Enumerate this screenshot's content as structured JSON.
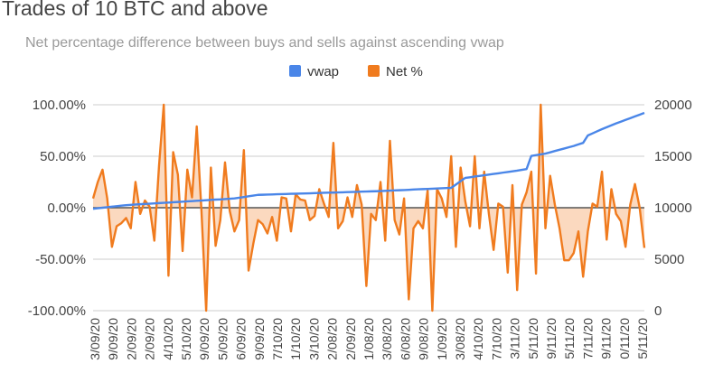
{
  "chart_data": {
    "type": "line",
    "title": "Trades of 10 BTC and above",
    "subtitle": "Net percentage difference between buys and sells against ascending vwap",
    "legend": {
      "position": "top",
      "entries": [
        "vwap",
        "Net %"
      ]
    },
    "colors": {
      "vwap": "#4a86e8",
      "net": "#f07b1e",
      "net_fill": "#f9c9a4",
      "grid": "#cccccc",
      "zero_line": "#555555"
    },
    "y_left": {
      "range": [
        -100,
        100
      ],
      "ticks": [
        "100.00%",
        "50.00%",
        "0.00%",
        "-50.00%",
        "-100.00%"
      ],
      "tick_values": [
        100,
        50,
        0,
        -50,
        -100
      ]
    },
    "y_right": {
      "range": [
        0,
        20000
      ],
      "ticks": [
        "20000",
        "15000",
        "10000",
        "5000",
        "0"
      ],
      "tick_values": [
        20000,
        15000,
        10000,
        5000,
        0
      ]
    },
    "x_tick_labels": [
      "3/09/20",
      "9/09/20",
      "2/09/20",
      "2/09/20",
      "4/10/20",
      "5/10/20",
      "9/09/20",
      "5/09/20",
      "6/09/20",
      "9/09/20",
      "7/10/20",
      "1/10/20",
      "3/10/20",
      "2/08/20",
      "2/09/20",
      "1/08/20",
      "3/08/20",
      "6/08/20",
      "9/08/20",
      "1/09/20",
      "3/08/20",
      "4/10/20",
      "7/10/20",
      "3/11/20",
      "5/11/20",
      "9/11/20",
      "5/11/20",
      "7/11/20",
      "9/11/20",
      "0/11/20",
      "5/11/20"
    ],
    "grid": true,
    "series": [
      {
        "name": "vwap",
        "axis": "right",
        "values": [
          9900,
          9950,
          10000,
          10050,
          10100,
          10150,
          10200,
          10250,
          10280,
          10310,
          10340,
          10370,
          10390,
          10420,
          10450,
          10480,
          10500,
          10530,
          10560,
          10590,
          10620,
          10640,
          10670,
          10700,
          10730,
          10760,
          10790,
          10810,
          10840,
          10870,
          10900,
          10970,
          11040,
          11110,
          11180,
          11250,
          11260,
          11280,
          11290,
          11310,
          11320,
          11330,
          11350,
          11360,
          11380,
          11390,
          11400,
          11420,
          11430,
          11450,
          11460,
          11470,
          11490,
          11500,
          11520,
          11530,
          11540,
          11560,
          11570,
          11590,
          11600,
          11620,
          11640,
          11660,
          11680,
          11700,
          11720,
          11740,
          11770,
          11790,
          11810,
          11830,
          11850,
          11870,
          11890,
          11910,
          11930,
          12250,
          12580,
          12900,
          12960,
          13030,
          13090,
          13150,
          13220,
          13280,
          13340,
          13410,
          13470,
          13540,
          13600,
          13680,
          13760,
          15030,
          15110,
          15180,
          15260,
          15380,
          15510,
          15630,
          15750,
          15880,
          16000,
          16150,
          16300,
          17020,
          17220,
          17430,
          17630,
          17820,
          18000,
          18190,
          18360,
          18530,
          18700,
          18870,
          19040,
          19210
        ]
      },
      {
        "name": "Net %",
        "axis": "left",
        "values": [
          9,
          25,
          37,
          9,
          -38,
          -18,
          -15,
          -10,
          -20,
          25,
          -6,
          7,
          1,
          -32,
          41,
          100,
          -66,
          54,
          32,
          -42,
          37,
          10,
          79,
          -3,
          -100,
          39,
          -37,
          -12,
          44,
          -3,
          -23,
          -12,
          56,
          -61,
          -35,
          -12,
          -16,
          -25,
          -9,
          -32,
          10,
          9,
          -23,
          13,
          8,
          7,
          -12,
          -8,
          18,
          4,
          -9,
          63,
          -20,
          -13,
          10,
          -9,
          22,
          3,
          -76,
          -6,
          -12,
          25,
          -32,
          65,
          -12,
          -26,
          9,
          -89,
          -20,
          -13,
          -20,
          17,
          -100,
          18,
          9,
          -9,
          50,
          -38,
          39,
          6,
          -18,
          50,
          -20,
          35,
          -6,
          -41,
          4,
          1,
          -63,
          22,
          -80,
          3,
          15,
          35,
          -64,
          100,
          -20,
          31,
          3,
          -20,
          -51,
          -51,
          -44,
          -23,
          -67,
          -23,
          4,
          1,
          35,
          -31,
          18,
          -6,
          -13,
          -38,
          3,
          23,
          0,
          -39
        ]
      }
    ]
  }
}
